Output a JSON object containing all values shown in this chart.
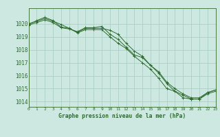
{
  "title": "Graphe pression niveau de la mer (hPa)",
  "background_color": "#cce8e0",
  "grid_color": "#aacfc8",
  "line_color": "#2d6b2d",
  "xlim": [
    0,
    23
  ],
  "ylim": [
    1013.6,
    1021.2
  ],
  "yticks": [
    1014,
    1015,
    1016,
    1017,
    1018,
    1019,
    1020
  ],
  "xticks": [
    0,
    1,
    2,
    3,
    4,
    5,
    6,
    7,
    8,
    9,
    10,
    11,
    12,
    13,
    14,
    15,
    16,
    17,
    18,
    19,
    20,
    21,
    22,
    23
  ],
  "series1": [
    1020.0,
    1020.2,
    1020.4,
    1020.2,
    1019.95,
    1019.65,
    1019.3,
    1019.55,
    1019.55,
    1019.55,
    1019.0,
    1018.5,
    1018.1,
    1017.5,
    1017.0,
    1016.5,
    1015.8,
    1015.0,
    1014.8,
    1014.5,
    1014.2,
    1014.2,
    1014.6,
    1014.8
  ],
  "series2": [
    1019.95,
    1020.25,
    1020.5,
    1020.25,
    1019.75,
    1019.65,
    1019.35,
    1019.65,
    1019.65,
    1019.65,
    1019.5,
    1019.2,
    1018.5,
    1017.9,
    1017.5,
    1016.8,
    1016.2,
    1015.4,
    1014.8,
    1014.3,
    1014.2,
    1014.2,
    1014.7,
    1014.9
  ],
  "series3": [
    1019.9,
    1020.1,
    1020.3,
    1020.1,
    1019.7,
    1019.6,
    1019.4,
    1019.7,
    1019.7,
    1019.8,
    1019.2,
    1018.8,
    1018.2,
    1017.6,
    1017.4,
    1016.8,
    1016.3,
    1015.5,
    1015.0,
    1014.6,
    1014.3,
    1014.3,
    1014.7,
    1014.9
  ],
  "ylabel_fontsize": 5.5,
  "xlabel_fontsize": 4.5,
  "title_fontsize": 5.8
}
